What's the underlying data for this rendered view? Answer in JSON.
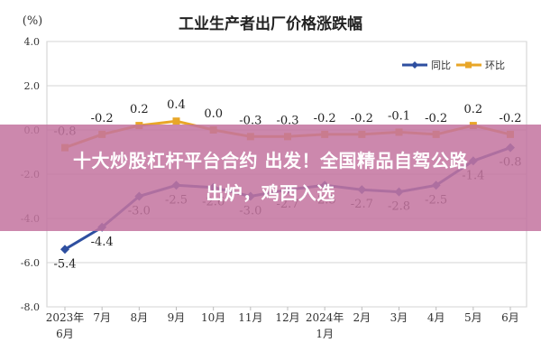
{
  "chart_data": {
    "type": "line",
    "title": "工业生产者出厂价格涨跌幅",
    "unit_label": "(%)",
    "categories": [
      "2023年6月",
      "7月",
      "8月",
      "9月",
      "10月",
      "11月",
      "12月",
      "2024年1月",
      "2月",
      "3月",
      "4月",
      "5月",
      "6月"
    ],
    "category_lines": [
      [
        "2023年",
        "6月"
      ],
      [
        "7月"
      ],
      [
        "8月"
      ],
      [
        "9月"
      ],
      [
        "10月"
      ],
      [
        "11月"
      ],
      [
        "12月"
      ],
      [
        "2024年",
        "1月"
      ],
      [
        "2月"
      ],
      [
        "3月"
      ],
      [
        "4月"
      ],
      [
        "5月"
      ],
      [
        "6月"
      ]
    ],
    "ylim": [
      -8.0,
      4.0
    ],
    "yticks": [
      "4.0",
      "2.0",
      "0.0",
      "-2.0",
      "-4.0",
      "-6.0",
      "-8.0"
    ],
    "legend_position": "top-right",
    "series": [
      {
        "name": "同比",
        "color": "#2e4fa0",
        "values": [
          -5.4,
          -4.4,
          -3.0,
          -2.5,
          -2.6,
          -3.0,
          -2.7,
          -2.5,
          -2.7,
          -2.8,
          -2.5,
          -1.4,
          -0.8
        ],
        "labels": [
          "-5.4",
          "-4.4",
          "-3.0",
          "-2.5",
          "-2.6",
          "-3.0",
          "-2.7",
          "-2.5",
          "-2.7",
          "-2.8",
          "-2.5",
          "-1.4",
          "-0.8"
        ]
      },
      {
        "name": "环比",
        "color": "#e8a628",
        "values": [
          -0.8,
          -0.2,
          0.2,
          0.4,
          0.0,
          -0.3,
          -0.3,
          -0.2,
          -0.2,
          -0.1,
          -0.2,
          0.2,
          -0.2
        ],
        "labels": [
          "-0.8",
          "-0.2",
          "0.2",
          "0.4",
          "0.0",
          "-0.3",
          "-0.3",
          "-0.2",
          "-0.2",
          "-0.1",
          "-0.2",
          "0.2",
          "-0.2"
        ]
      }
    ]
  },
  "overlay": {
    "color": "#c474a0",
    "line1": "十大炒股杠杆平台合约 出发！全国精品自驾公路",
    "line2": "出炉，鸡西入选"
  }
}
